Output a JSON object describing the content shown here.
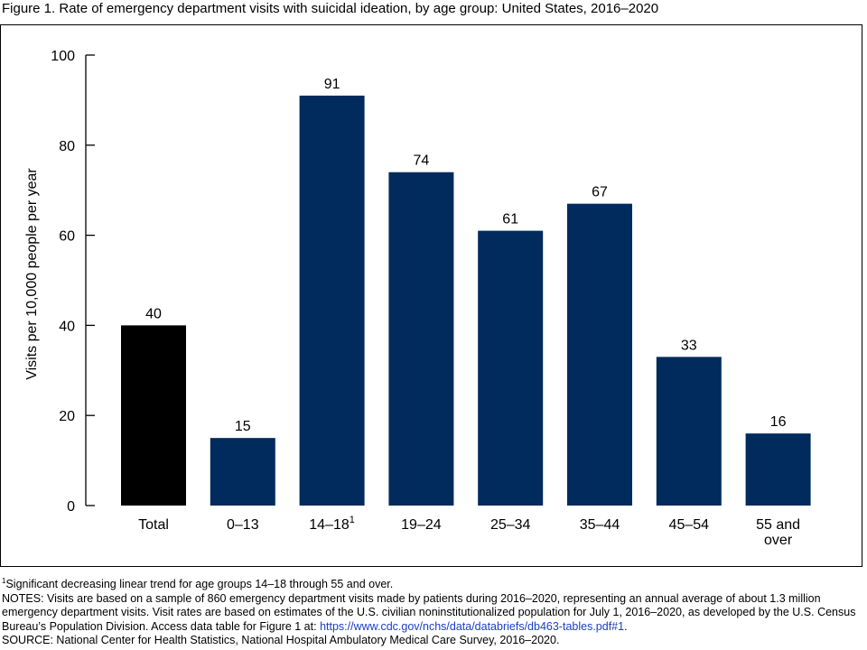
{
  "title": "Figure 1. Rate of emergency department visits with suicidal ideation, by age group: United States, 2016–2020",
  "colors": {
    "total_bar": "#000000",
    "group_bar": "#002b5c",
    "link": "#1a3fc4"
  },
  "chart_data": {
    "type": "bar",
    "categories": [
      "Total",
      "0–13",
      "14–18",
      "19–24",
      "25–34",
      "35–44",
      "45–54",
      "55 and over"
    ],
    "category_lines": [
      [
        "Total"
      ],
      [
        "0–13"
      ],
      [
        "14–18"
      ],
      [
        "19–24"
      ],
      [
        "25–34"
      ],
      [
        "35–44"
      ],
      [
        "45–54"
      ],
      [
        "55 and",
        "over"
      ]
    ],
    "category_superscripts": [
      "",
      "",
      "1",
      "",
      "",
      "",
      "",
      ""
    ],
    "values": [
      40,
      15,
      91,
      74,
      61,
      67,
      33,
      16
    ],
    "data_labels": [
      "40",
      "15",
      "91",
      "74",
      "61",
      "67",
      "33",
      "16"
    ],
    "ylabel": "Visits per 10,000 people per year",
    "xlabel": "",
    "ylim": [
      0,
      100
    ],
    "yticks": [
      0,
      20,
      40,
      60,
      80,
      100
    ],
    "grid": false
  },
  "notes": {
    "footnote_marker": "1",
    "footnote": "Significant decreasing linear trend for age groups 14–18 through 55 and over.",
    "notes_text": "NOTES: Visits are based on a sample of 860 emergency department visits made by patients during 2016–2020, representing an annual average of about 1.3 million emergency department visits. Visit rates are based on estimates of the U.S. civilian noninstitutionalized population for July 1, 2016–2020, as developed by the U.S. Census Bureau’s Population Division. Access data table for Figure 1 at: ",
    "link_text": "https://www.cdc.gov/nchs/data/databriefs/db463-tables.pdf#1",
    "notes_end": ".",
    "source": "SOURCE: National Center for Health Statistics, National Hospital Ambulatory Medical Care Survey, 2016–2020."
  }
}
